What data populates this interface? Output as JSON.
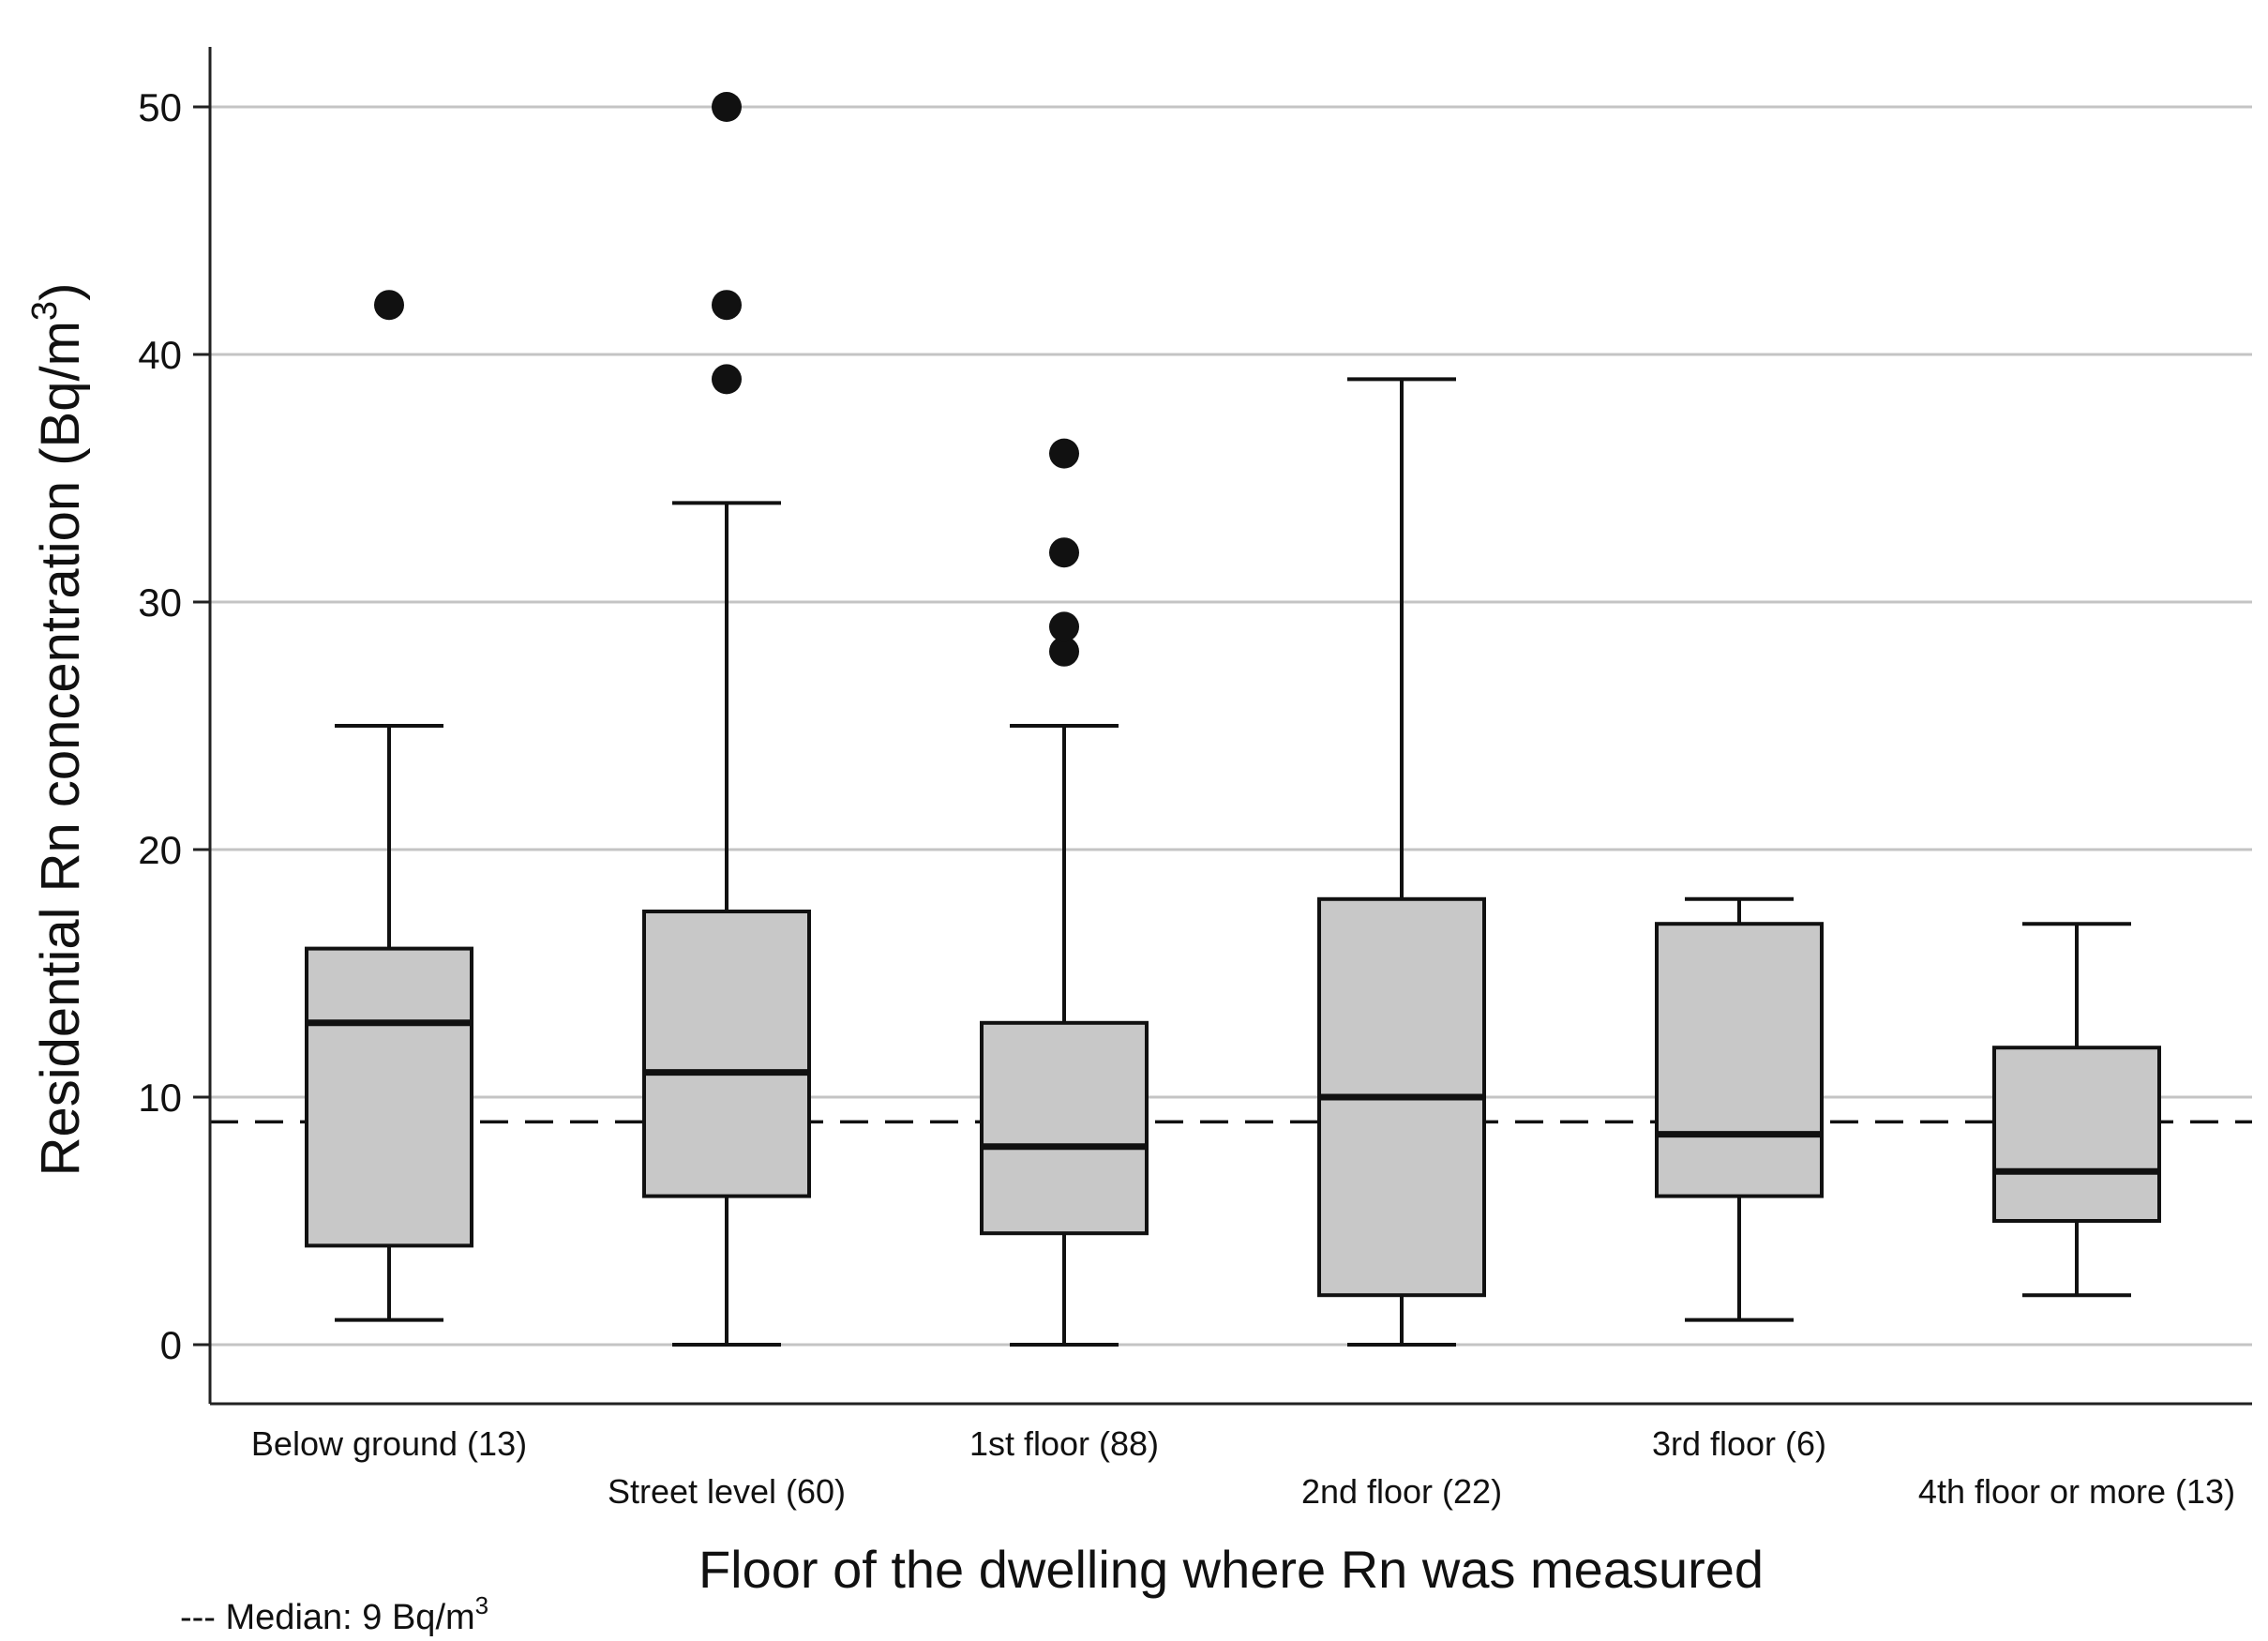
{
  "chart_data": {
    "type": "box",
    "title": "",
    "ylabel": "Residential Rn concentration (Bq/m",
    "ylabel_superscript": "3",
    "ylabel_close": ")",
    "xlabel": "Floor of the dwelling where Rn was measured",
    "ylim": [
      0,
      50
    ],
    "yticks": [
      0,
      10,
      20,
      30,
      40,
      50
    ],
    "grid": "horizontal",
    "reference_line": {
      "value": 9,
      "style": "dashed",
      "label": "--- Median: 9 Bq/m",
      "label_superscript": "3"
    },
    "categories": [
      "Below ground (13)",
      "Street level (60)",
      "1st floor (88)",
      "2nd floor (22)",
      "3rd floor (6)",
      "4th floor or more (13)"
    ],
    "boxes": [
      {
        "category": "Below ground (13)",
        "whisker_low": 1,
        "q1": 4,
        "median": 13,
        "q3": 16,
        "whisker_high": 25,
        "outliers": [
          42
        ]
      },
      {
        "category": "Street level (60)",
        "whisker_low": 0,
        "q1": 6,
        "median": 11,
        "q3": 17.5,
        "whisker_high": 34,
        "outliers": [
          39,
          42,
          50
        ]
      },
      {
        "category": "1st floor (88)",
        "whisker_low": 0,
        "q1": 4.5,
        "median": 8,
        "q3": 13,
        "whisker_high": 25,
        "outliers": [
          28,
          29,
          32,
          36
        ]
      },
      {
        "category": "2nd floor (22)",
        "whisker_low": 0,
        "q1": 2,
        "median": 10,
        "q3": 18,
        "whisker_high": 39,
        "outliers": []
      },
      {
        "category": "3rd floor (6)",
        "whisker_low": 1,
        "q1": 6,
        "median": 8.5,
        "q3": 17,
        "whisker_high": 18,
        "outliers": []
      },
      {
        "category": "4th floor or more (13)",
        "whisker_low": 2,
        "q1": 5,
        "median": 7,
        "q3": 12,
        "whisker_high": 17,
        "outliers": []
      }
    ],
    "colors": {
      "box_fill": "#c8c8c8",
      "grid": "#c4c4c4",
      "axis": "#222222",
      "stroke": "#111111"
    }
  }
}
